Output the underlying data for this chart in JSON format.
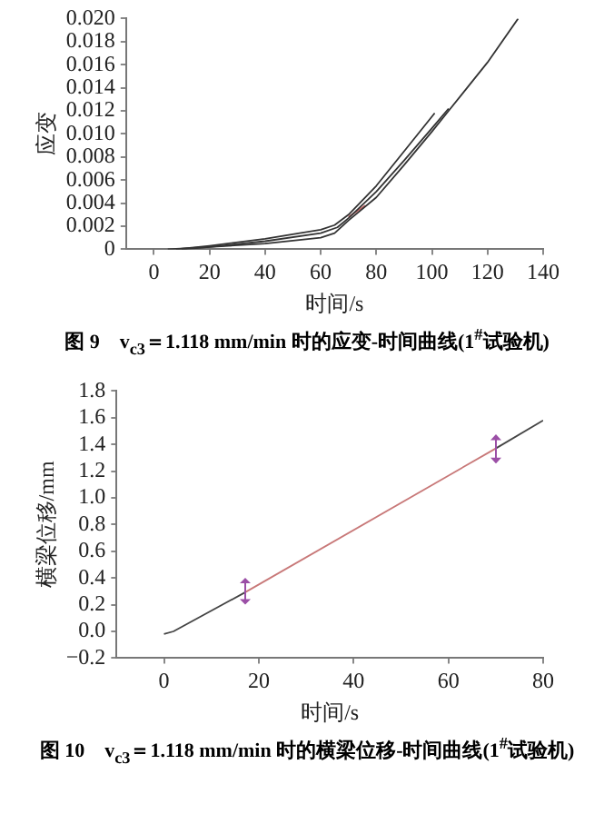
{
  "chart_data": [
    {
      "type": "line",
      "title": "图 9　v$_{c3}$＝1.118 mm/min 时的应变-时间曲线(1$^{#}$试验机)",
      "xlabel": "时间/s",
      "ylabel": "应变",
      "xlim": [
        -10,
        140
      ],
      "xticks": [
        0,
        20,
        40,
        60,
        80,
        100,
        120,
        140
      ],
      "ylim": [
        0,
        0.02
      ],
      "yticks": [
        0,
        0.002,
        0.004,
        0.006,
        0.008,
        {
          "value": 0.01,
          "label": "0.010"
        },
        0.012,
        0.014,
        0.016,
        0.018,
        {
          "value": 0.02,
          "label": "0.020"
        }
      ],
      "marker": "none",
      "line_style": "solid",
      "series": [
        {
          "color": "#333333",
          "x": [
            5,
            20,
            40,
            60,
            65,
            70,
            80,
            90,
            100,
            106,
            120,
            131
          ],
          "values": [
            0,
            0.0002,
            0.0005,
            0.001,
            0.0014,
            0.0025,
            0.0045,
            0.0073,
            0.0102,
            0.012,
            0.0162,
            0.02
          ]
        },
        {
          "color": "#333333",
          "x": [
            8,
            20,
            40,
            60,
            65,
            70,
            80,
            90,
            101
          ],
          "values": [
            0,
            0.0003,
            0.0009,
            0.0017,
            0.0021,
            0.003,
            0.0055,
            0.0085,
            0.0118
          ]
        },
        {
          "color": "#333333",
          "x": [
            10,
            20,
            40,
            60,
            66,
            70,
            80,
            90,
            100,
            106
          ],
          "values": [
            0,
            0.0002,
            0.0007,
            0.0014,
            0.0019,
            0.0027,
            0.005,
            0.0077,
            0.0105,
            0.0122
          ]
        },
        {
          "color": "#d46a6a",
          "x": [
            70,
            76
          ],
          "values": [
            0.0028,
            0.0038
          ]
        }
      ]
    },
    {
      "type": "line",
      "title": "图 10　v$_{c3}$＝1.118 mm/min 时的横梁位移-时间曲线(1$^{#}$试验机)",
      "xlabel": "时间/s",
      "ylabel": "横梁位移/mm",
      "xlim": [
        -10,
        80
      ],
      "xticks": [
        0,
        20,
        40,
        60,
        80
      ],
      "ylim": [
        -0.2,
        1.8
      ],
      "yticks": [
        {
          "value": -0.2,
          "label": "−0.2"
        },
        {
          "value": 0,
          "label": "0.0"
        },
        0.2,
        0.4,
        0.6,
        0.8,
        {
          "value": 1,
          "label": "1.0"
        },
        1.2,
        1.4,
        1.6,
        1.8
      ],
      "marker": "none",
      "line_style": "solid",
      "series": [
        {
          "color": "#444444",
          "x": [
            0,
            2,
            17
          ],
          "values": [
            -0.02,
            0,
            0.29
          ]
        },
        {
          "color": "#c87878",
          "x": [
            17,
            70
          ],
          "values": [
            0.29,
            1.37
          ]
        },
        {
          "color": "#444444",
          "x": [
            70,
            80
          ],
          "values": [
            1.37,
            1.58
          ]
        }
      ]
    }
  ]
}
